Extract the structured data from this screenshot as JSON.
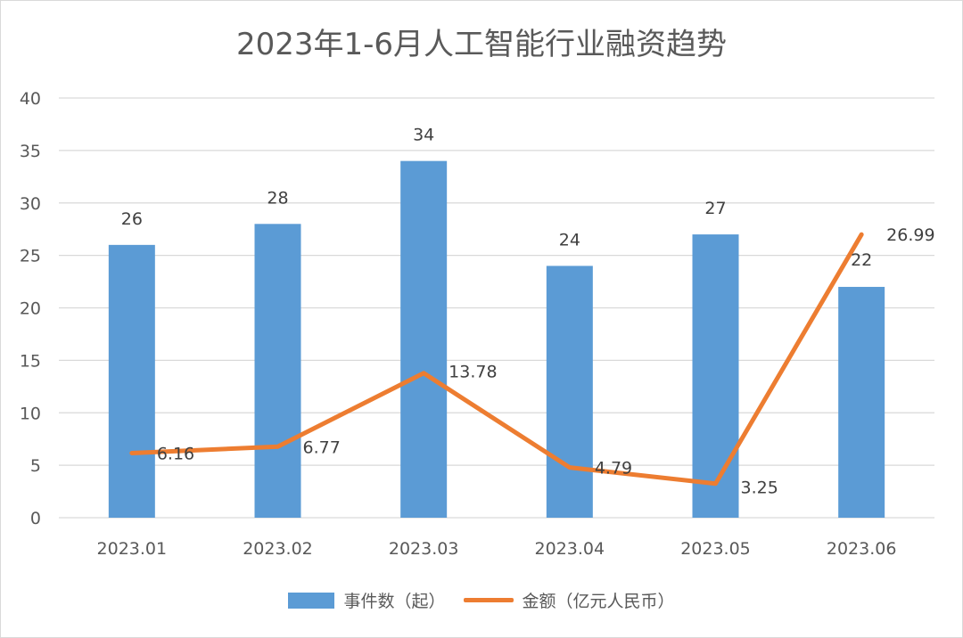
{
  "chart_data": {
    "type": "bar",
    "title": "2023年1-6月人工智能行业融资趋势",
    "categories": [
      "2023.01",
      "2023.02",
      "2023.03",
      "2023.04",
      "2023.05",
      "2023.06"
    ],
    "ylim": [
      0,
      40
    ],
    "yticks": [
      0,
      5,
      10,
      15,
      20,
      25,
      30,
      35,
      40
    ],
    "grid": true,
    "legend_position": "bottom",
    "series": [
      {
        "name": "事件数（起）",
        "type": "bar",
        "color": "#5B9BD5",
        "values": [
          26,
          28,
          34,
          24,
          27,
          22
        ],
        "labels": [
          "26",
          "28",
          "34",
          "24",
          "27",
          "22"
        ]
      },
      {
        "name": "金额（亿元人民币）",
        "type": "line",
        "color": "#ED7D31",
        "values": [
          6.16,
          6.77,
          13.78,
          4.79,
          3.25,
          26.99
        ],
        "labels": [
          "6.16",
          "6.77",
          "13.78",
          "4.79",
          "3.25",
          "26.99"
        ]
      }
    ]
  }
}
